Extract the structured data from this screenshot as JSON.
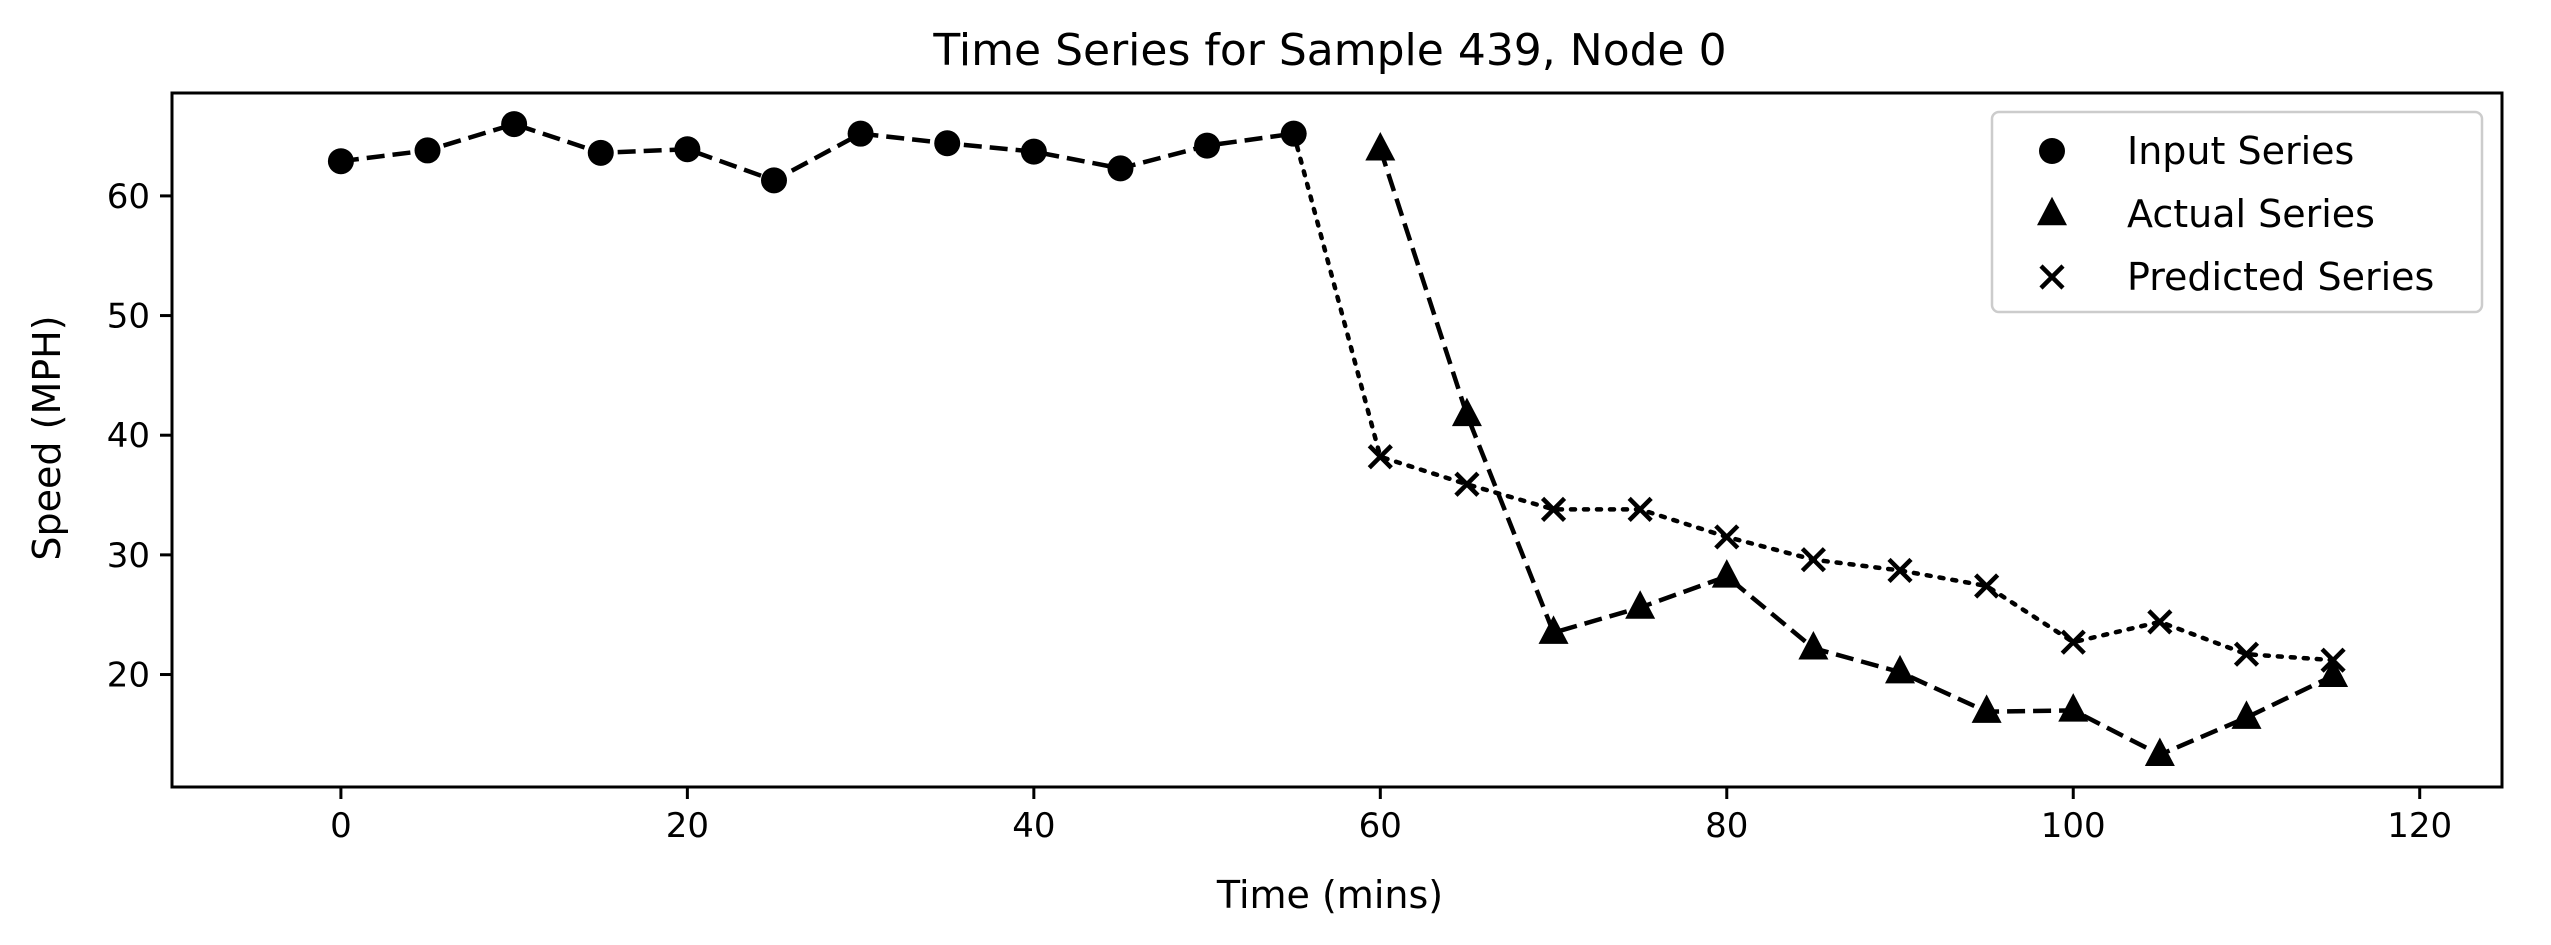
{
  "chart_data": {
    "type": "line",
    "title": "Time Series for Sample 439, Node 0",
    "xlabel": "Time (mins)",
    "ylabel": "Speed (MPH)",
    "xlim": [
      -9.75,
      124.75
    ],
    "ylim": [
      10.6,
      68.6
    ],
    "xticks": [
      0,
      20,
      40,
      60,
      80,
      100,
      120
    ],
    "yticks": [
      20,
      30,
      40,
      50,
      60
    ],
    "grid": false,
    "legend_position": "top-right",
    "series": [
      {
        "name": "Input Series",
        "marker": "circle",
        "linestyle": "dashed",
        "x": [
          0,
          5,
          10,
          15,
          20,
          25,
          30,
          35,
          40,
          45,
          50,
          55
        ],
        "y": [
          62.9,
          63.8,
          66.0,
          63.6,
          63.9,
          61.3,
          65.2,
          64.4,
          63.7,
          62.3,
          64.2,
          65.2
        ]
      },
      {
        "name": "Actual Series",
        "marker": "triangle",
        "linestyle": "dashed",
        "connect_from_last_input": false,
        "x": [
          60,
          65,
          70,
          75,
          80,
          85,
          90,
          95,
          100,
          105,
          110,
          115
        ],
        "y": [
          63.9,
          41.7,
          23.5,
          25.6,
          28.2,
          22.2,
          20.2,
          16.9,
          17.0,
          13.3,
          16.4,
          19.9
        ]
      },
      {
        "name": "Predicted Series",
        "marker": "x",
        "linestyle": "dotted",
        "connect_from_last_input": true,
        "x": [
          60,
          65,
          70,
          75,
          80,
          85,
          90,
          95,
          100,
          105,
          110,
          115
        ],
        "y": [
          38.2,
          35.9,
          33.8,
          33.8,
          31.5,
          29.6,
          28.7,
          27.4,
          22.7,
          24.4,
          21.7,
          21.2
        ]
      }
    ]
  }
}
